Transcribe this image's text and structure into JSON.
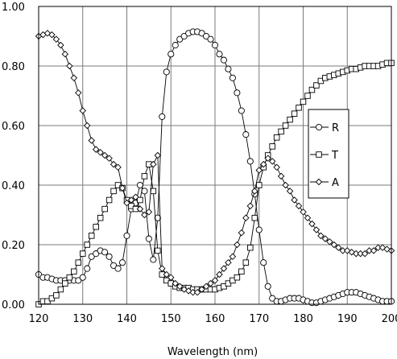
{
  "chart_data": {
    "type": "line",
    "title": "",
    "xlabel": "Wavelength (nm)",
    "ylabel": "",
    "xlim": [
      120,
      200
    ],
    "ylim": [
      0,
      1
    ],
    "x_ticks": [
      120,
      130,
      140,
      150,
      160,
      170,
      180,
      190,
      200
    ],
    "x_tick_labels": [
      "120",
      "130",
      "140",
      "150",
      "160",
      "170",
      "180",
      "190",
      "200"
    ],
    "y_ticks": [
      0,
      0.2,
      0.4,
      0.6,
      0.8,
      1.0
    ],
    "y_tick_labels": [
      "0.00",
      "0.20",
      "0.40",
      "0.60",
      "0.80",
      "1.00"
    ],
    "grid": true,
    "legend_position": "right",
    "x": [
      120,
      121,
      122,
      123,
      124,
      125,
      126,
      127,
      128,
      129,
      130,
      131,
      132,
      133,
      134,
      135,
      136,
      137,
      138,
      139,
      140,
      141,
      142,
      143,
      144,
      145,
      146,
      147,
      148,
      149,
      150,
      151,
      152,
      153,
      154,
      155,
      156,
      157,
      158,
      159,
      160,
      161,
      162,
      163,
      164,
      165,
      166,
      167,
      168,
      169,
      170,
      171,
      172,
      173,
      174,
      175,
      176,
      177,
      178,
      179,
      180,
      181,
      182,
      183,
      184,
      185,
      186,
      187,
      188,
      189,
      190,
      191,
      192,
      193,
      194,
      195,
      196,
      197,
      198,
      199,
      200
    ],
    "series": [
      {
        "name": "R",
        "marker": "circle",
        "values": [
          0.1,
          0.09,
          0.09,
          0.085,
          0.08,
          0.08,
          0.08,
          0.08,
          0.08,
          0.08,
          0.09,
          0.12,
          0.16,
          0.17,
          0.18,
          0.175,
          0.16,
          0.13,
          0.12,
          0.14,
          0.23,
          0.32,
          0.34,
          0.4,
          0.38,
          0.22,
          0.15,
          0.29,
          0.63,
          0.78,
          0.84,
          0.87,
          0.89,
          0.9,
          0.91,
          0.915,
          0.915,
          0.91,
          0.9,
          0.89,
          0.87,
          0.84,
          0.82,
          0.79,
          0.76,
          0.71,
          0.65,
          0.57,
          0.48,
          0.37,
          0.25,
          0.14,
          0.06,
          0.02,
          0.01,
          0.01,
          0.015,
          0.02,
          0.02,
          0.02,
          0.015,
          0.01,
          0.005,
          0.005,
          0.01,
          0.015,
          0.02,
          0.025,
          0.03,
          0.035,
          0.04,
          0.04,
          0.04,
          0.035,
          0.03,
          0.025,
          0.02,
          0.015,
          0.01,
          0.01,
          0.01
        ]
      },
      {
        "name": "T",
        "marker": "square",
        "values": [
          0.0,
          0.01,
          0.01,
          0.02,
          0.03,
          0.05,
          0.07,
          0.09,
          0.11,
          0.14,
          0.17,
          0.2,
          0.23,
          0.26,
          0.29,
          0.32,
          0.35,
          0.38,
          0.4,
          0.39,
          0.35,
          0.33,
          0.32,
          0.35,
          0.43,
          0.47,
          0.38,
          0.18,
          0.1,
          0.08,
          0.07,
          0.06,
          0.055,
          0.055,
          0.055,
          0.05,
          0.05,
          0.05,
          0.05,
          0.05,
          0.05,
          0.055,
          0.06,
          0.07,
          0.08,
          0.09,
          0.11,
          0.14,
          0.19,
          0.29,
          0.4,
          0.46,
          0.5,
          0.53,
          0.56,
          0.58,
          0.6,
          0.62,
          0.64,
          0.66,
          0.68,
          0.7,
          0.72,
          0.735,
          0.75,
          0.76,
          0.765,
          0.77,
          0.775,
          0.78,
          0.785,
          0.79,
          0.79,
          0.795,
          0.8,
          0.8,
          0.8,
          0.8,
          0.805,
          0.81,
          0.81
        ]
      },
      {
        "name": "A",
        "marker": "diamond",
        "values": [
          0.9,
          0.905,
          0.91,
          0.905,
          0.89,
          0.87,
          0.84,
          0.8,
          0.76,
          0.71,
          0.65,
          0.6,
          0.55,
          0.52,
          0.51,
          0.5,
          0.49,
          0.47,
          0.46,
          0.39,
          0.34,
          0.35,
          0.36,
          0.32,
          0.3,
          0.31,
          0.47,
          0.5,
          0.12,
          0.1,
          0.09,
          0.07,
          0.06,
          0.05,
          0.045,
          0.04,
          0.04,
          0.05,
          0.06,
          0.07,
          0.08,
          0.1,
          0.12,
          0.14,
          0.16,
          0.2,
          0.24,
          0.29,
          0.33,
          0.38,
          0.45,
          0.47,
          0.49,
          0.48,
          0.46,
          0.43,
          0.4,
          0.38,
          0.35,
          0.33,
          0.31,
          0.29,
          0.27,
          0.25,
          0.23,
          0.22,
          0.21,
          0.2,
          0.19,
          0.18,
          0.18,
          0.175,
          0.17,
          0.17,
          0.17,
          0.18,
          0.18,
          0.19,
          0.19,
          0.185,
          0.18
        ]
      }
    ]
  }
}
